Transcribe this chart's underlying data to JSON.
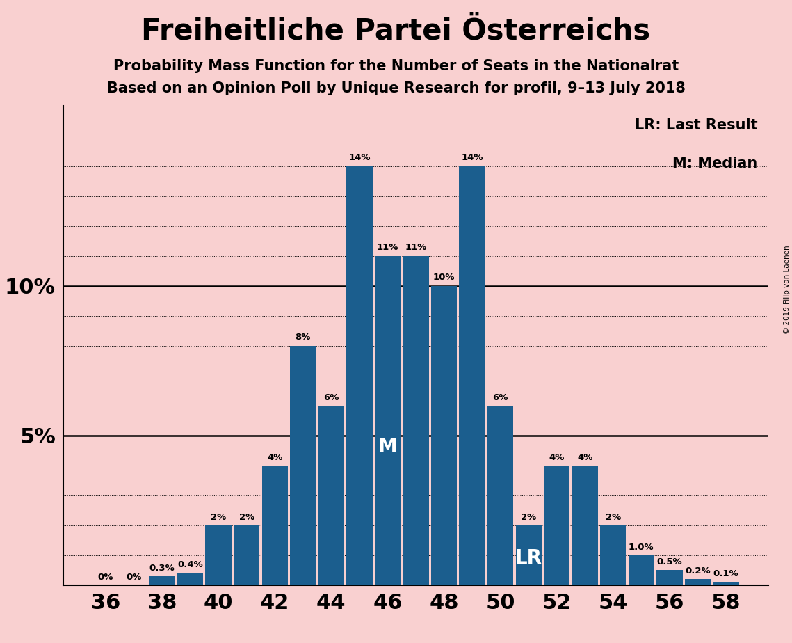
{
  "title": "Freiheitliche Partei Österreichs",
  "subtitle1": "Probability Mass Function for the Number of Seats in the Nationalrat",
  "subtitle2": "Based on an Opinion Poll by Unique Research for profil, 9–13 July 2018",
  "copyright": "© 2019 Filip van Laenen",
  "seats": [
    36,
    37,
    38,
    39,
    40,
    41,
    42,
    43,
    44,
    45,
    46,
    47,
    48,
    49,
    50,
    51,
    52,
    53,
    54,
    55,
    56,
    57,
    58
  ],
  "probabilities": [
    0.0,
    0.0,
    0.3,
    0.4,
    2.0,
    2.0,
    4.0,
    8.0,
    6.0,
    14.0,
    11.0,
    11.0,
    10.0,
    14.0,
    6.0,
    2.0,
    4.0,
    4.0,
    2.0,
    1.0,
    0.5,
    0.2,
    0.1
  ],
  "labels": [
    "0%",
    "0%",
    "0.3%",
    "0.4%",
    "2%",
    "2%",
    "4%",
    "8%",
    "6%",
    "14%",
    "11%",
    "11%",
    "10%",
    "14%",
    "6%",
    "2%",
    "4%",
    "4%",
    "2%",
    "1.0%",
    "0.5%",
    "0.2%",
    "0.1%"
  ],
  "bar_color": "#1b5e8e",
  "background_color": "#f9d0d0",
  "last_result_seat": 51,
  "median_seat": 46,
  "lr_label": "LR",
  "median_label": "M",
  "legend_lr": "LR: Last Result",
  "legend_m": "M: Median",
  "xlabel_seats": [
    36,
    38,
    40,
    42,
    44,
    46,
    48,
    50,
    52,
    54,
    56,
    58
  ]
}
